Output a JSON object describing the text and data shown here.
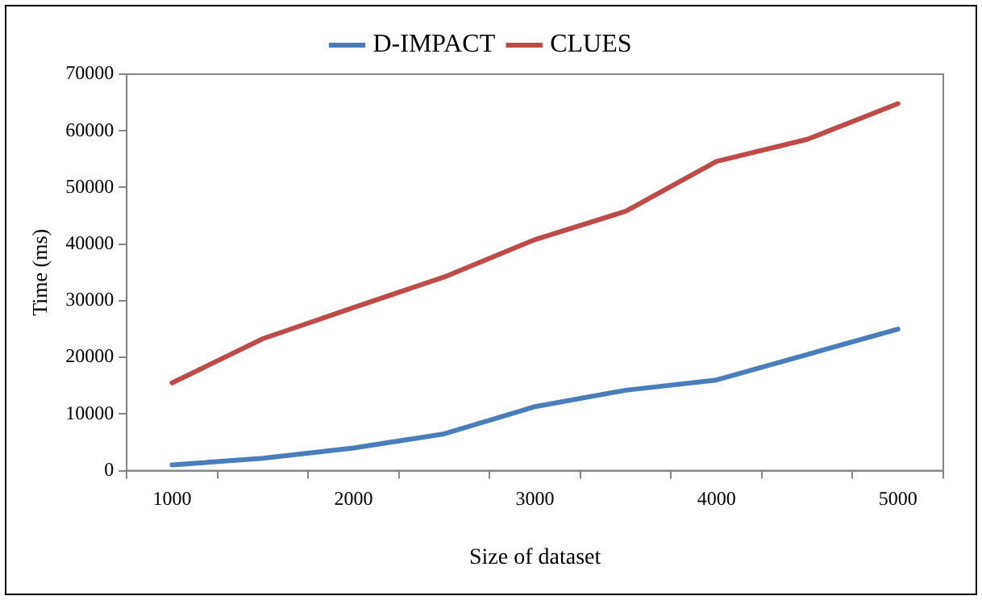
{
  "chart_data": {
    "type": "line",
    "xlabel": "Size of dataset",
    "ylabel": "Time (ms)",
    "categories": [
      "1000",
      null,
      "2000",
      null,
      "3000",
      null,
      "4000",
      null,
      "5000"
    ],
    "series": [
      {
        "name": "D-IMPACT",
        "color": "#4a7ebb",
        "values": [
          1000,
          2200,
          4000,
          6500,
          11300,
          14200,
          16000,
          20500,
          25000
        ]
      },
      {
        "name": "CLUES",
        "color": "#be4b48",
        "values": [
          15500,
          23300,
          28800,
          34200,
          40800,
          45800,
          54600,
          58500,
          64800
        ]
      }
    ],
    "ylim": [
      0,
      70000
    ],
    "yticks": [
      0,
      10000,
      20000,
      30000,
      40000,
      50000,
      60000,
      70000
    ],
    "grid": false,
    "legend": "top",
    "marker": "none",
    "line_style": "solid"
  }
}
